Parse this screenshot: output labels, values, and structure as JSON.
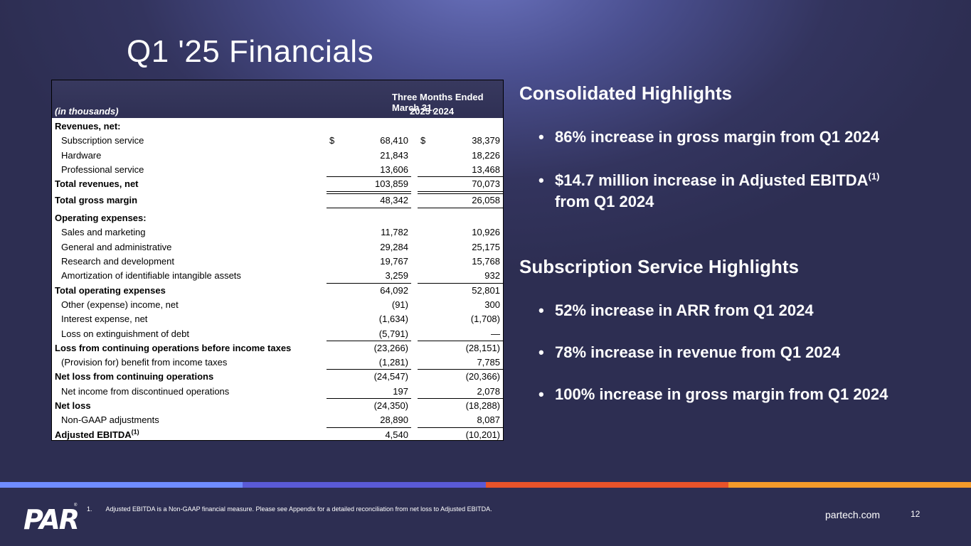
{
  "title": "Q1 '25 Financials",
  "table": {
    "period_header": "Three Months Ended March 31,",
    "unit_label": "(in thousands)",
    "year1": "2025",
    "year2": "2024",
    "rows": [
      {
        "label": "Revenues, net:",
        "v1": "",
        "v2": ""
      },
      {
        "label": "Subscription service",
        "dollar": "$",
        "v1": "68,410",
        "v2": "38,379"
      },
      {
        "label": "Hardware",
        "v1": "21,843",
        "v2": "18,226"
      },
      {
        "label": "Professional service",
        "v1": "13,606",
        "v2": "13,468"
      },
      {
        "label": "Total revenues, net",
        "v1": "103,859",
        "v2": "70,073"
      },
      {
        "label": "Total gross margin",
        "v1": "48,342",
        "v2": "26,058"
      },
      {
        "label": "Operating expenses:",
        "v1": "",
        "v2": ""
      },
      {
        "label": "Sales and marketing",
        "v1": "11,782",
        "v2": "10,926"
      },
      {
        "label": "General and administrative",
        "v1": "29,284",
        "v2": "25,175"
      },
      {
        "label": "Research and development",
        "v1": "19,767",
        "v2": "15,768"
      },
      {
        "label": "Amortization of identifiable intangible assets",
        "v1": "3,259",
        "v2": "932"
      },
      {
        "label": "Total operating expenses",
        "v1": "64,092",
        "v2": "52,801"
      },
      {
        "label": "Other (expense) income, net",
        "v1": "(91)",
        "v2": "300"
      },
      {
        "label": "Interest expense, net",
        "v1": "(1,634)",
        "v2": "(1,708)"
      },
      {
        "label": "Loss on extinguishment of debt",
        "v1": "(5,791)",
        "v2": "—"
      },
      {
        "label": "Loss from continuing operations before income taxes",
        "v1": "(23,266)",
        "v2": "(28,151)"
      },
      {
        "label": "(Provision for) benefit from income taxes",
        "v1": "(1,281)",
        "v2": "7,785"
      },
      {
        "label": "Net loss from continuing operations",
        "v1": "(24,547)",
        "v2": "(20,366)"
      },
      {
        "label": "Net income from discontinued operations",
        "v1": "197",
        "v2": "2,078"
      },
      {
        "label": "Net loss",
        "v1": "(24,350)",
        "v2": "(18,288)"
      },
      {
        "label": "Non-GAAP adjustments",
        "v1": "28,890",
        "v2": "8,087"
      },
      {
        "label": "Adjusted EBITDA",
        "sup": "(1)",
        "v1": "4,540",
        "v2": "(10,201)"
      }
    ]
  },
  "consolidated": {
    "heading": "Consolidated Highlights",
    "b1": "86% increase in gross margin from Q1 2024",
    "b2_line1": "$14.7 million increase in Adjusted EBITDA",
    "b2_sup": "(1)",
    "b2_line2": "from Q1 2024"
  },
  "subscription": {
    "heading": "Subscription Service Highlights",
    "b1": "52% increase in ARR from Q1 2024",
    "b2": "78% increase in revenue from Q1 2024",
    "b3": "100% increase in gross margin from Q1 2024"
  },
  "bullet_char": "•",
  "footer": {
    "note_num": "1.",
    "note": "Adjusted EBITDA is a Non-GAAP financial measure. Please see Appendix for a detailed reconciliation from net loss to Adjusted EBITDA.",
    "logo": "PAR",
    "logo_mark": "®",
    "site": "partech.com",
    "page": "12"
  },
  "stripe_colors": [
    "#6f8cff",
    "#5a5ad6",
    "#e8532a",
    "#f39a2a"
  ]
}
